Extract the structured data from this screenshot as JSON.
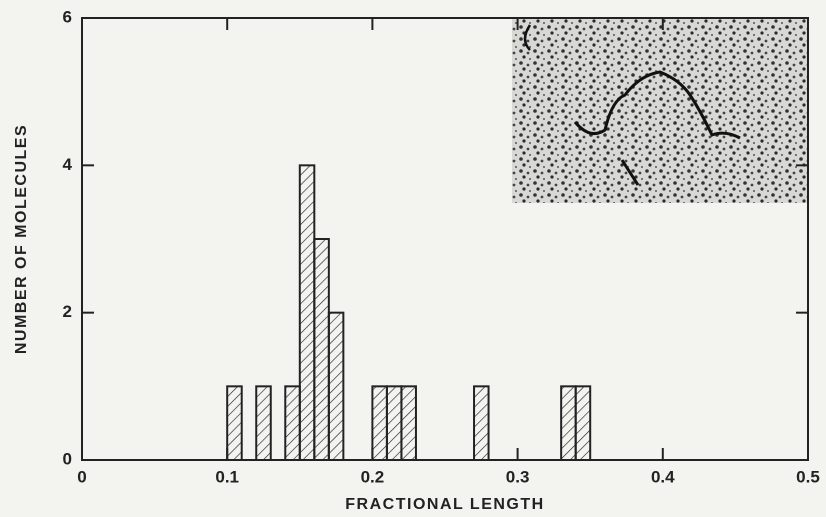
{
  "chart_data": {
    "type": "histogram",
    "xlabel": "FRACTIONAL LENGTH",
    "ylabel": "NUMBER OF MOLECULES",
    "bins": [
      0.1,
      0.11,
      0.12,
      0.13,
      0.14,
      0.15,
      0.16,
      0.17,
      0.18,
      0.19,
      0.2,
      0.21,
      0.22,
      0.23,
      0.24,
      0.25,
      0.26,
      0.27,
      0.28,
      0.29,
      0.3,
      0.31,
      0.32,
      0.33,
      0.34,
      0.35
    ],
    "counts": [
      1,
      0,
      1,
      0,
      1,
      4,
      3,
      2,
      0,
      0,
      1,
      1,
      1,
      0,
      0,
      0,
      0,
      1,
      0,
      0,
      0,
      0,
      0,
      1,
      1
    ],
    "color": "#222222",
    "xlim": [
      0,
      0.5
    ],
    "xticks": [
      0,
      0.1,
      0.2,
      0.3,
      0.4,
      0.5
    ],
    "ylim": [
      0,
      6
    ],
    "yticks": [
      0,
      2,
      4,
      6
    ]
  }
}
